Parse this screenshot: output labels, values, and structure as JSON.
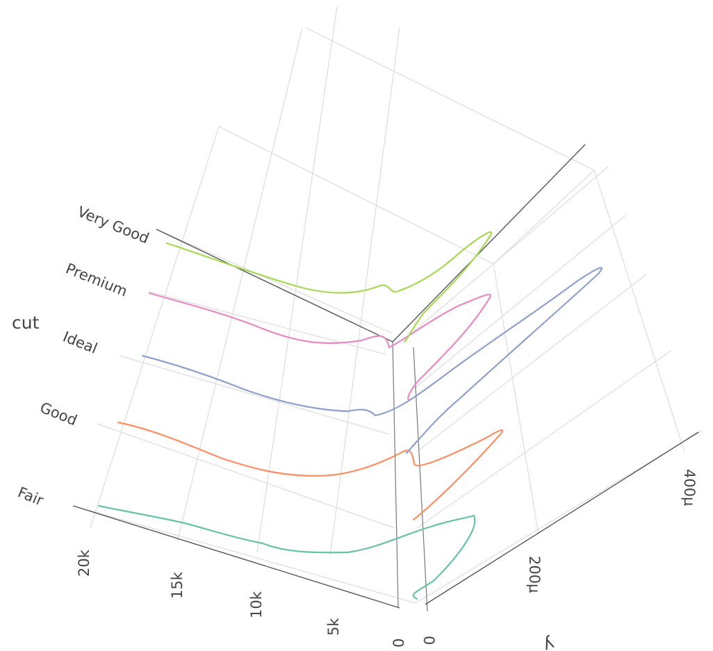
{
  "chart_data": {
    "type": "line",
    "projection": "3d",
    "x_axis": {
      "label": "",
      "ticks": [
        "20k",
        "15k",
        "10k",
        "5k",
        "0"
      ]
    },
    "y_axis": {
      "label": "y",
      "ticks": [
        "0",
        "200μ",
        "400μ"
      ]
    },
    "z_axis": {
      "label": "cut",
      "categories": [
        "Fair",
        "Good",
        "Ideal",
        "Premium",
        "Very Good"
      ]
    },
    "series": [
      {
        "name": "Fair",
        "color": "#66c2a5"
      },
      {
        "name": "Good",
        "color": "#fc8d62"
      },
      {
        "name": "Ideal",
        "color": "#8da0cb"
      },
      {
        "name": "Premium",
        "color": "#e78ac3"
      },
      {
        "name": "Very Good",
        "color": "#a6d854"
      }
    ]
  }
}
